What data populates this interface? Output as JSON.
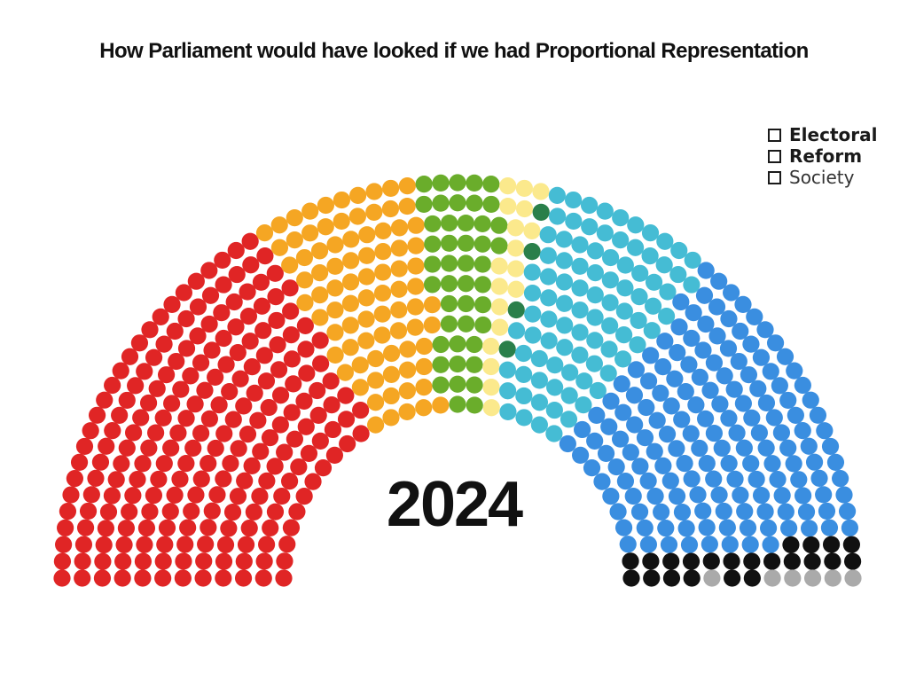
{
  "chart_data": {
    "type": "parliament",
    "title": "How Parliament would have looked if we had Proportional Representation",
    "center_label": "2024",
    "total_seats": 650,
    "series": [
      {
        "color": "#e02525",
        "seats": 220
      },
      {
        "color": "#f5a623",
        "seats": 85
      },
      {
        "color": "#6aad2b",
        "seats": 45
      },
      {
        "color": "#fbe98c",
        "seats": 18
      },
      {
        "color": "#2a7f4a",
        "seats": 4
      },
      {
        "color": "#45bcd4",
        "seats": 90
      },
      {
        "color": "#3a8ee0",
        "seats": 160
      },
      {
        "color": "#111111",
        "seats": 22
      },
      {
        "color": "#aaaaaa",
        "seats": 6
      }
    ]
  },
  "logo": {
    "line1": "Electoral",
    "line2": "Reform",
    "line3": "Society",
    "icon": "checkbox-square-icon"
  }
}
